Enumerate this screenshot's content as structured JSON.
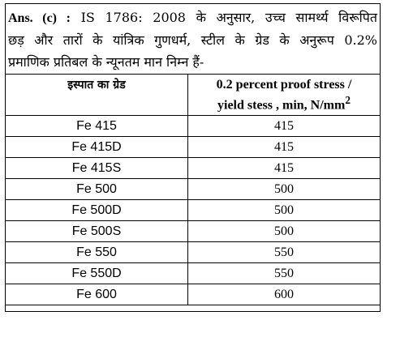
{
  "answer": {
    "label": "Ans. (c) :",
    "line1": "IS 1786: 2008 के अनुसार, उच्च सामर्थ्य विरूपित",
    "line2": "छड़ और तारों के यांत्रिक गुणधर्म, स्टील के ग्रेड के अनुरूप 0.2%",
    "line3": "प्रमाणिक प्रतिबल के न्यूनतम मान निम्न हैं-"
  },
  "table": {
    "headers": {
      "grade": "इस्पात का ग्रेड",
      "stress_line1": "0.2 percent proof stress /",
      "stress_line2": "yield stess , min, N/mm",
      "stress_sup": "2"
    },
    "rows": [
      {
        "grade": "Fe 415",
        "stress": "415"
      },
      {
        "grade": "Fe 415D",
        "stress": "415"
      },
      {
        "grade": "Fe 415S",
        "stress": "415"
      },
      {
        "grade": "Fe 500",
        "stress": "500"
      },
      {
        "grade": "Fe 500D",
        "stress": "500"
      },
      {
        "grade": "Fe 500S",
        "stress": "500"
      },
      {
        "grade": "Fe 550",
        "stress": "550"
      },
      {
        "grade": "Fe 550D",
        "stress": "550"
      },
      {
        "grade": "Fe 600",
        "stress": "600"
      }
    ]
  }
}
